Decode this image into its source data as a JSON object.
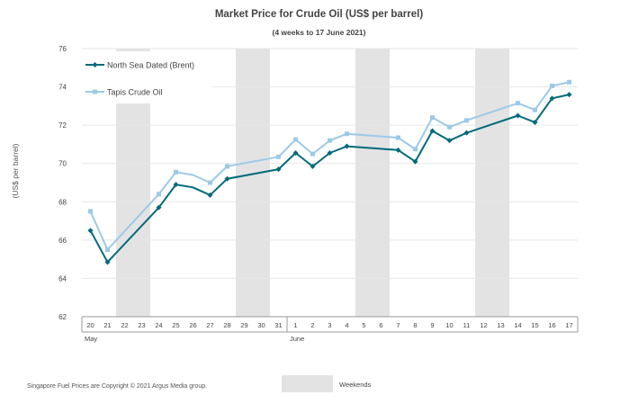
{
  "title": "Market Price for Crude Oil  (US$  per barrel)",
  "subtitle": "(4 weeks to 17 June 2021)",
  "footnote": "Singapore Fuel Prices are Copyright © 2021 Argus Media group.",
  "weekend_legend_label": "Weekends",
  "colors": {
    "brent": "#006a7b",
    "tapis": "#9cc9e8",
    "weekend": "#e3e3e3",
    "grid": "#e6e6e6",
    "axis": "#999999"
  },
  "chart_data": {
    "type": "line",
    "title": "Market Price for Crude Oil  (US$  per barrel)",
    "subtitle": "(4 weeks to 17 June 2021)",
    "xlabel": "",
    "ylabel": "(US$ per barrel)",
    "ylim": [
      62,
      76
    ],
    "yticks": [
      62,
      64,
      66,
      68,
      70,
      72,
      74,
      76
    ],
    "grid": true,
    "legend_position": "top-left",
    "month_labels": [
      {
        "label": "May",
        "at_category": 0
      },
      {
        "label": "June",
        "at_category": 12
      }
    ],
    "categories": [
      "20",
      "21",
      "22",
      "23",
      "24",
      "25",
      "26",
      "27",
      "28",
      "29",
      "30",
      "31",
      "1",
      "2",
      "3",
      "4",
      "5",
      "6",
      "7",
      "8",
      "9",
      "10",
      "11",
      "12",
      "13",
      "14",
      "15",
      "16",
      "17"
    ],
    "weekend_bands": [
      [
        "22",
        "23"
      ],
      [
        "29",
        "30"
      ],
      [
        "5",
        "6"
      ],
      [
        "12",
        "13"
      ]
    ],
    "series": [
      {
        "name": "North Sea Dated (Brent)",
        "color": "#006a7b",
        "marker": "diamond",
        "values": [
          66.5,
          64.85,
          null,
          null,
          67.7,
          68.9,
          68.75,
          68.35,
          69.2,
          null,
          null,
          69.7,
          70.55,
          69.85,
          70.55,
          70.9,
          null,
          null,
          70.7,
          70.1,
          71.7,
          71.2,
          71.6,
          null,
          null,
          72.5,
          72.15,
          73.4,
          73.6
        ],
        "marker_at": [
          "20",
          "21",
          "24",
          "25",
          "27",
          "28",
          "31",
          "1",
          "2",
          "3",
          "4",
          "7",
          "8",
          "9",
          "10",
          "11",
          "14",
          "15",
          "16",
          "17"
        ]
      },
      {
        "name": "Tapis Crude Oil",
        "color": "#9cc9e8",
        "marker": "square",
        "values": [
          67.5,
          65.5,
          null,
          null,
          68.4,
          69.55,
          69.4,
          69.0,
          69.85,
          null,
          null,
          70.35,
          71.25,
          70.5,
          71.2,
          71.55,
          null,
          null,
          71.35,
          70.75,
          72.4,
          71.9,
          72.25,
          null,
          null,
          73.15,
          72.8,
          74.05,
          74.25
        ],
        "marker_at": [
          "20",
          "21",
          "24",
          "25",
          "27",
          "28",
          "31",
          "1",
          "2",
          "3",
          "4",
          "7",
          "8",
          "9",
          "10",
          "11",
          "14",
          "15",
          "16",
          "17"
        ]
      }
    ]
  }
}
